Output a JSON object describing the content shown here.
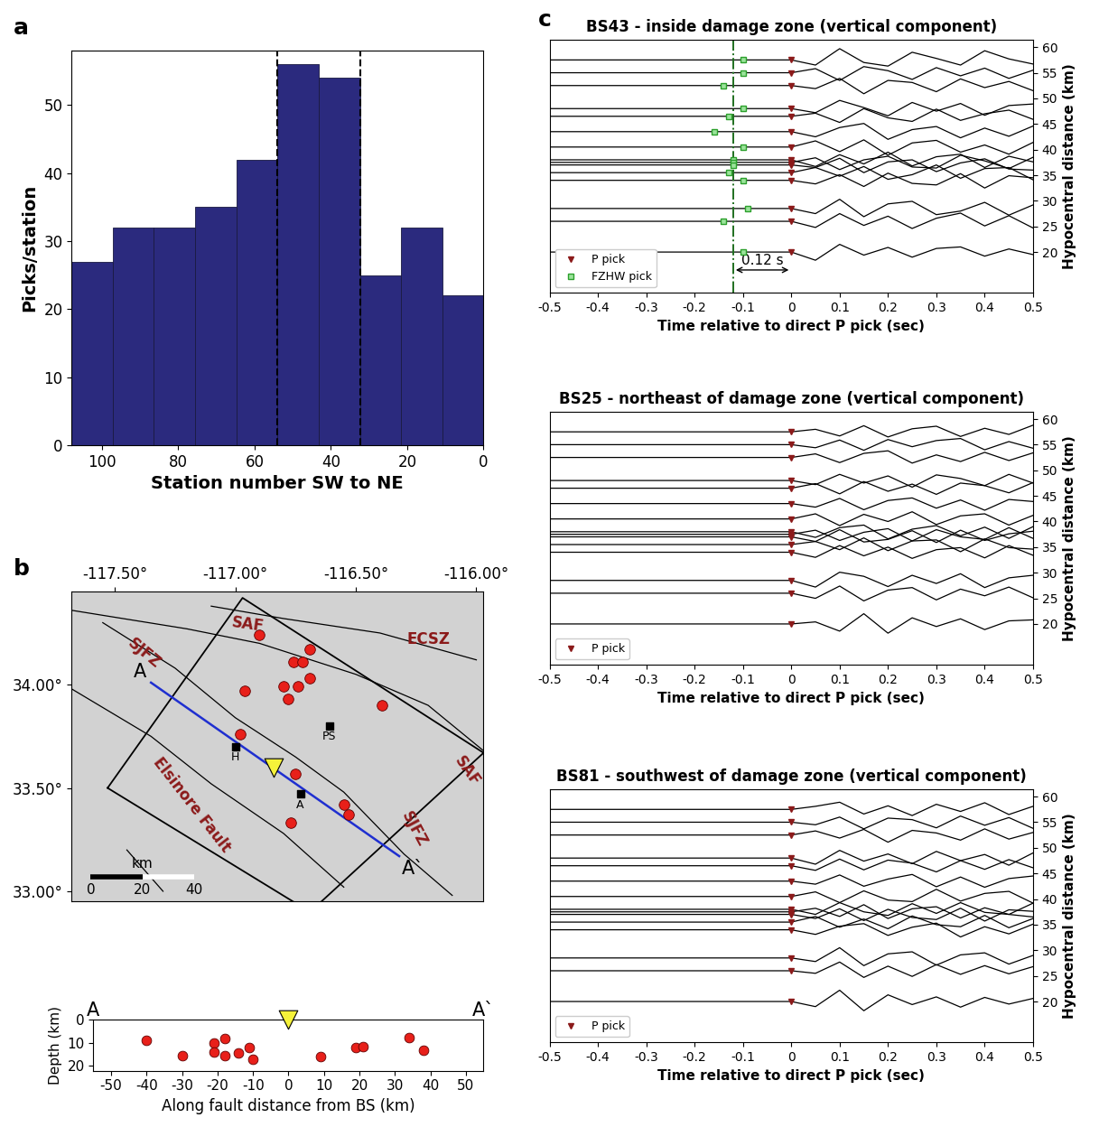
{
  "chart_data": [
    {
      "type": "bar",
      "panel_label": "a",
      "bins": [
        108,
        97.2,
        86.4,
        75.6,
        64.8,
        54,
        43.2,
        32.4,
        21.6,
        10.8,
        0
      ],
      "values": [
        27,
        32,
        32,
        35,
        42,
        56,
        54,
        25,
        32,
        22
      ],
      "color": "#2b2a7e",
      "vlines": [
        54,
        32.4
      ],
      "xlim": [
        108,
        0
      ],
      "xticks": [
        100,
        80,
        60,
        40,
        20,
        0
      ],
      "ylim": [
        0,
        58
      ],
      "yticks": [
        0,
        10,
        20,
        30,
        40,
        50
      ],
      "x_label": "Station number SW to NE",
      "y_label": "Picks/station"
    },
    {
      "type": "map",
      "panel_label": "b",
      "xlim": [
        -117.68,
        -115.97
      ],
      "xticks": [
        {
          "value": -117.5,
          "label": "-117.50°"
        },
        {
          "value": -117.0,
          "label": "-117.00°"
        },
        {
          "value": -116.5,
          "label": "-116.50°"
        },
        {
          "value": -116.0,
          "label": "-116.00°"
        }
      ],
      "ylim": [
        32.95,
        34.45
      ],
      "yticks": [
        {
          "value": 33.0,
          "label": "33.00°"
        },
        {
          "value": 33.5,
          "label": "33.50°"
        },
        {
          "value": 34.0,
          "label": "34.00°"
        }
      ],
      "faults": [
        [
          [
            -117.68,
            34.36
          ],
          [
            -117.2,
            34.27
          ],
          [
            -116.9,
            34.2
          ],
          [
            -116.5,
            34.05
          ],
          [
            -116.2,
            33.9
          ],
          [
            -115.97,
            33.68
          ]
        ],
        [
          [
            -117.55,
            34.3
          ],
          [
            -117.25,
            34.08
          ],
          [
            -117.0,
            33.84
          ],
          [
            -116.75,
            33.65
          ],
          [
            -116.55,
            33.48
          ],
          [
            -116.3,
            33.18
          ],
          [
            -116.1,
            32.98
          ]
        ],
        [
          [
            -117.68,
            33.98
          ],
          [
            -117.35,
            33.75
          ],
          [
            -117.1,
            33.52
          ],
          [
            -116.8,
            33.28
          ],
          [
            -116.55,
            33.02
          ]
        ],
        [
          [
            -117.1,
            34.38
          ],
          [
            -116.8,
            34.32
          ],
          [
            -116.4,
            34.25
          ],
          [
            -116.0,
            34.12
          ]
        ],
        [
          [
            -117.45,
            33.2
          ],
          [
            -117.3,
            33.0
          ]
        ]
      ],
      "fault_labels": [
        "SAF",
        "SJFZ",
        "ECSZ",
        "SAF",
        "Elsinore Fault",
        "SJFZ"
      ],
      "fault_label_color": "#8b1a1a",
      "box": [
        [
          -117.53,
          33.5
        ],
        [
          -116.97,
          34.42
        ],
        [
          -115.97,
          33.67
        ],
        [
          -116.69,
          32.9
        ]
      ],
      "profile": {
        "start": [
          -117.35,
          34.01
        ],
        "end": [
          -116.32,
          33.17
        ],
        "start_label": "A",
        "end_label": "A`",
        "color": "#1f2fd0"
      },
      "earthquakes": {
        "lon": [
          -116.9,
          -116.76,
          -116.72,
          -116.69,
          -116.96,
          -116.8,
          -116.78,
          -116.74,
          -116.69,
          -116.39,
          -116.98,
          -116.75,
          -116.55,
          -116.53,
          -116.77
        ],
        "lat": [
          34.24,
          34.11,
          34.11,
          34.17,
          33.97,
          33.99,
          33.93,
          33.99,
          34.03,
          33.9,
          33.76,
          33.57,
          33.42,
          33.37,
          33.33
        ],
        "color": "#e8201a"
      },
      "stations": [
        {
          "name": "H",
          "lon": -117.0,
          "lat": 33.7
        },
        {
          "name": "PS",
          "lon": -116.61,
          "lat": 33.8
        },
        {
          "name": "A",
          "lon": -116.73,
          "lat": 33.47
        }
      ],
      "bs": {
        "lon": -116.84,
        "lat": 33.6,
        "color": "#f5f23a"
      },
      "scale_bar": {
        "label": "km",
        "ticks": [
          0,
          20,
          40
        ]
      }
    },
    {
      "type": "scatter",
      "x": [
        -40,
        -30,
        -21,
        -21,
        -18,
        -18,
        -14,
        -11,
        -10,
        9,
        19,
        21,
        34,
        38
      ],
      "values": [
        9,
        15.5,
        10,
        14,
        8,
        15.5,
        14.5,
        12,
        17,
        16,
        12,
        11.5,
        7.5,
        13
      ],
      "color": "#e8201a",
      "bs": {
        "x": 0,
        "depth": 0,
        "color": "#f5f23a"
      },
      "start_label": "A",
      "end_label": "A`",
      "xlim": [
        -55,
        55
      ],
      "xticks": [
        -50,
        -40,
        -30,
        -20,
        -10,
        0,
        10,
        20,
        30,
        40,
        50
      ],
      "ylim": [
        22,
        0
      ],
      "yticks": [
        0,
        10,
        20
      ],
      "x_label": "Along fault distance from BS (km)",
      "y_label": "Depth (km)"
    },
    {
      "type": "waveform",
      "panel_label": "c",
      "title": "BS43 - inside damage zone (vertical component)",
      "t": [
        -0.5,
        0,
        0.05,
        0.1,
        0.15,
        0.2,
        0.25,
        0.3,
        0.35,
        0.4,
        0.45,
        0.5
      ],
      "distances": [
        57.5,
        55,
        52.5,
        48,
        46.5,
        43.5,
        40.5,
        38,
        37.5,
        37,
        35.5,
        34,
        28.5,
        26,
        20
      ],
      "amplitudes": [
        [
          0,
          0,
          -1.0,
          2.2,
          -0.5,
          -1.2,
          1.5,
          0.3,
          -1.0,
          1.8,
          0.2,
          -0.8
        ],
        [
          0,
          0,
          0.8,
          -1.5,
          1.2,
          0.4,
          -1.3,
          1.0,
          -0.6,
          0.9,
          -1.1,
          0.5
        ],
        [
          0,
          0,
          -0.6,
          1.4,
          -1.6,
          1.0,
          0.6,
          -1.2,
          1.3,
          -0.4,
          0.8,
          -1.0
        ],
        [
          0,
          0,
          -0.8,
          1.6,
          0.2,
          -1.4,
          1.2,
          -0.5,
          1.0,
          -1.3,
          0.6,
          0.9
        ],
        [
          0,
          0,
          0.6,
          -1.2,
          1.5,
          -0.3,
          -1.0,
          1.4,
          -0.8,
          0.5,
          1.2,
          -0.6
        ],
        [
          0,
          0,
          -1.0,
          0.8,
          1.6,
          -1.5,
          0.4,
          1.0,
          -1.2,
          0.7,
          -0.9,
          1.1
        ],
        [
          0,
          0,
          1.2,
          -0.9,
          1.4,
          -1.6,
          0.8,
          1.3,
          -1.0,
          0.4,
          -1.4,
          0.9
        ],
        [
          0,
          0,
          -1.3,
          1.0,
          -0.8,
          1.5,
          -1.2,
          0.6,
          1.1,
          -1.5,
          0.7,
          -0.4
        ],
        [
          0,
          0,
          0.9,
          -1.4,
          0.5,
          1.2,
          -0.9,
          -1.1,
          1.4,
          0.3,
          -1.2,
          1.0
        ],
        [
          0,
          0,
          -0.5,
          1.3,
          -1.5,
          0.6,
          1.0,
          -1.3,
          0.4,
          1.2,
          -0.8,
          -1.0
        ],
        [
          0,
          0,
          1.0,
          -0.7,
          1.2,
          -1.3,
          -0.4,
          1.5,
          -1.1,
          0.8,
          1.0,
          -1.4
        ],
        [
          0,
          0,
          -0.7,
          1.1,
          -1.2,
          1.4,
          -0.6,
          -0.9,
          1.3,
          -1.5,
          0.9,
          0.5
        ],
        [
          0,
          0,
          -1.0,
          1.8,
          -1.6,
          0.9,
          1.4,
          -1.2,
          -0.5,
          1.2,
          -1.3,
          0.7
        ],
        [
          0,
          0,
          -1.2,
          1.5,
          -0.8,
          1.0,
          -1.4,
          0.6,
          1.6,
          -0.9,
          1.1,
          -1.3
        ],
        [
          0,
          0,
          -1.6,
          1.5,
          -0.6,
          0.9,
          -1.0,
          0.7,
          1.0,
          -0.8,
          0.6,
          -0.5
        ]
      ],
      "p_pick": 0,
      "p_pick_name": "P pick",
      "p_pick_color": "#8b1a1a",
      "fzhw_picks": [
        -0.1,
        -0.1,
        -0.14,
        -0.1,
        -0.13,
        -0.16,
        -0.1,
        -0.12,
        -0.12,
        -0.12,
        -0.13,
        -0.1,
        -0.09,
        -0.14,
        -0.1
      ],
      "fzhw_name": "FZHW pick",
      "fzhw_color": "#2ca02c",
      "fzhw_line": -0.12,
      "delay_label": "0.12 s",
      "legend": "lower left",
      "xlim": [
        -0.5,
        0.5
      ],
      "xticks": [
        -0.5,
        -0.4,
        -0.3,
        -0.2,
        -0.1,
        0,
        0.1,
        0.2,
        0.3,
        0.4,
        0.5
      ],
      "ylim": [
        12,
        61.5
      ],
      "yticks": [
        20,
        25,
        30,
        35,
        40,
        45,
        50,
        55,
        60
      ],
      "x_label": "Time relative to direct P pick (sec)",
      "y_label": "Hypocentral distance (km)"
    },
    {
      "type": "waveform",
      "title": "BS25 - northeast of damage zone (vertical component)",
      "t": [
        -0.5,
        0,
        0.05,
        0.1,
        0.15,
        0.2,
        0.25,
        0.3,
        0.35,
        0.4,
        0.45,
        0.5
      ],
      "distances": [
        57.5,
        55,
        52.5,
        48,
        46.5,
        43.5,
        40.5,
        38,
        37.5,
        37,
        35.5,
        34,
        28.5,
        26,
        20
      ],
      "amplitudes": [
        [
          0,
          0,
          0.5,
          -0.8,
          1.2,
          -1.0,
          0.6,
          1.1,
          -0.9,
          0.7,
          -0.5,
          1.3
        ],
        [
          0,
          0,
          -0.6,
          0.9,
          -1.1,
          1.0,
          -0.4,
          0.8,
          1.2,
          -1.0,
          0.6,
          -0.7
        ],
        [
          0,
          0,
          0.7,
          -1.0,
          0.8,
          1.3,
          -1.1,
          0.5,
          -0.8,
          1.0,
          -0.6,
          0.9
        ],
        [
          0,
          0,
          -0.8,
          1.2,
          -0.5,
          0.9,
          -1.3,
          1.1,
          0.4,
          -1.0,
          1.2,
          -0.5
        ],
        [
          0,
          0,
          0.9,
          -1.1,
          1.3,
          -0.6,
          0.8,
          -1.2,
          1.0,
          0.5,
          -0.9,
          1.1
        ],
        [
          0,
          0,
          -0.7,
          1.0,
          -1.2,
          0.6,
          1.1,
          -0.9,
          0.7,
          -1.3,
          0.8,
          0.4
        ],
        [
          0,
          0,
          1.0,
          -1.3,
          0.9,
          -0.5,
          1.4,
          -1.1,
          0.6,
          1.0,
          -1.2,
          0.7
        ],
        [
          0,
          0,
          -1.1,
          0.8,
          1.3,
          -1.4,
          0.5,
          1.2,
          -0.8,
          0.9,
          -1.3,
          1.0
        ],
        [
          0,
          0,
          0.8,
          -1.2,
          0.4,
          1.1,
          -1.3,
          0.9,
          -0.5,
          -1.0,
          1.3,
          -0.8
        ],
        [
          0,
          0,
          -0.9,
          1.4,
          -1.0,
          -0.5,
          1.2,
          -1.1,
          1.3,
          -0.7,
          0.6,
          1.1
        ],
        [
          0,
          0,
          0.6,
          -1.0,
          1.3,
          -1.2,
          0.7,
          0.9,
          -1.4,
          1.1,
          -0.6,
          -0.9
        ],
        [
          0,
          0,
          -1.0,
          1.3,
          -0.7,
          1.0,
          -1.2,
          0.5,
          0.9,
          -1.1,
          1.3,
          -0.6
        ],
        [
          0,
          0,
          -1.3,
          1.6,
          0.8,
          -1.2,
          1.0,
          -0.6,
          1.3,
          -1.4,
          0.5,
          1.0
        ],
        [
          0,
          0,
          -1.0,
          1.4,
          -1.5,
          0.6,
          1.1,
          -1.3,
          0.8,
          -0.5,
          1.2,
          -0.9
        ],
        [
          0,
          0,
          0.4,
          -1.4,
          2.0,
          -1.8,
          1.2,
          -0.5,
          1.0,
          -1.1,
          0.6,
          0.8
        ]
      ],
      "p_pick": 0,
      "p_pick_name": "P pick",
      "p_pick_color": "#8b1a1a",
      "legend": "lower left",
      "xlim": [
        -0.5,
        0.5
      ],
      "xticks": [
        -0.5,
        -0.4,
        -0.3,
        -0.2,
        -0.1,
        0,
        0.1,
        0.2,
        0.3,
        0.4,
        0.5
      ],
      "ylim": [
        12,
        61.5
      ],
      "yticks": [
        20,
        25,
        30,
        35,
        40,
        45,
        50,
        55,
        60
      ],
      "x_label": "Time relative to direct P pick (sec)",
      "y_label": "Hypocentral distance (km)"
    },
    {
      "type": "waveform",
      "title": "BS81 - southwest of damage zone (vertical component)",
      "t": [
        -0.5,
        0,
        0.05,
        0.1,
        0.15,
        0.2,
        0.25,
        0.3,
        0.35,
        0.4,
        0.45,
        0.5
      ],
      "distances": [
        57.5,
        55,
        52.5,
        48,
        46.5,
        43.5,
        40.5,
        38,
        37.5,
        37,
        35.5,
        34,
        28.5,
        26,
        20
      ],
      "amplitudes": [
        [
          0,
          0,
          0.6,
          1.4,
          -0.9,
          0.7,
          -1.2,
          1.0,
          -0.4,
          1.3,
          -1.0,
          0.6
        ],
        [
          0,
          0,
          -0.5,
          1.0,
          -1.3,
          0.8,
          0.5,
          -1.1,
          1.2,
          -0.6,
          0.9,
          -1.2
        ],
        [
          0,
          0,
          0.8,
          -0.6,
          1.1,
          -1.4,
          0.9,
          0.4,
          -1.0,
          1.2,
          -0.8,
          0.5
        ],
        [
          0,
          0,
          -1.2,
          1.5,
          -0.6,
          0.8,
          -1.1,
          1.3,
          -0.5,
          0.7,
          -1.4,
          1.0
        ],
        [
          0,
          0,
          -0.9,
          1.3,
          -0.8,
          1.1,
          0.5,
          -1.2,
          1.0,
          -0.7,
          1.2,
          -0.4
        ],
        [
          0,
          0,
          -0.6,
          1.2,
          -1.0,
          0.4,
          1.3,
          -1.1,
          0.8,
          -1.2,
          0.5,
          1.0
        ],
        [
          0,
          0,
          0.9,
          -1.2,
          1.1,
          -0.7,
          -1.0,
          1.4,
          -0.9,
          0.6,
          1.0,
          -1.3
        ],
        [
          0,
          0,
          -1.0,
          1.3,
          -0.5,
          -1.2,
          1.1,
          -0.8,
          1.3,
          -0.6,
          -1.0,
          1.2
        ],
        [
          0,
          0,
          0.7,
          -0.9,
          1.4,
          -1.3,
          0.6,
          1.0,
          -1.2,
          0.8,
          -0.5,
          -1.0
        ],
        [
          0,
          0,
          -0.8,
          1.1,
          -1.2,
          1.0,
          -0.6,
          -1.0,
          1.2,
          -1.3,
          0.9,
          0.6
        ],
        [
          0,
          0,
          1.1,
          -1.0,
          0.6,
          -1.3,
          1.2,
          -0.5,
          -0.9,
          1.3,
          -1.1,
          0.7
        ],
        [
          0,
          0,
          -0.9,
          0.7,
          1.2,
          -1.1,
          0.5,
          1.3,
          -1.4,
          0.6,
          -0.8,
          1.1
        ],
        [
          0,
          0,
          -0.7,
          2.0,
          -1.5,
          0.8,
          1.2,
          -1.4,
          0.6,
          1.0,
          -1.2,
          0.5
        ],
        [
          0,
          0,
          -0.5,
          1.7,
          -1.3,
          0.9,
          -1.1,
          1.2,
          -0.7,
          1.0,
          -0.6,
          0.8
        ],
        [
          0,
          0,
          -1.0,
          2.2,
          -1.8,
          1.3,
          -0.6,
          0.9,
          -1.1,
          0.8,
          -0.5,
          0.6
        ]
      ],
      "p_pick": 0,
      "p_pick_name": "P pick",
      "p_pick_color": "#8b1a1a",
      "legend": "lower left",
      "xlim": [
        -0.5,
        0.5
      ],
      "xticks": [
        -0.5,
        -0.4,
        -0.3,
        -0.2,
        -0.1,
        0,
        0.1,
        0.2,
        0.3,
        0.4,
        0.5
      ],
      "ylim": [
        12,
        61.5
      ],
      "yticks": [
        20,
        25,
        30,
        35,
        40,
        45,
        50,
        55,
        60
      ],
      "x_label": "Time relative to direct P pick (sec)",
      "y_label": "Hypocentral distance (km)"
    }
  ]
}
